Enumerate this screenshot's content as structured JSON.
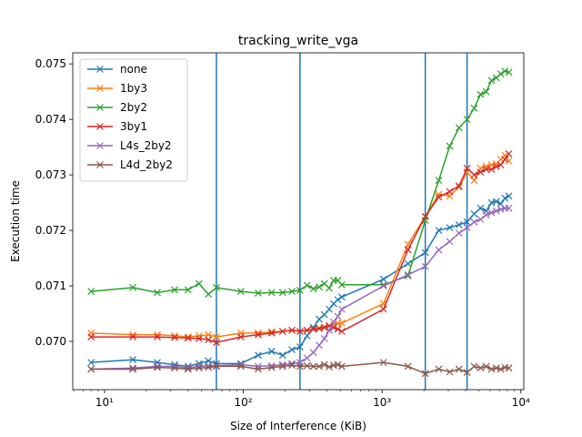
{
  "chart_data": {
    "type": "line",
    "title": "tracking_write_vga",
    "xlabel": "Size of Interference (KiB)",
    "ylabel": "Execution time",
    "xscale": "log",
    "xlim": [
      5.9,
      10500
    ],
    "ylim": [
      0.06913,
      0.0752
    ],
    "x_ticks": [
      10,
      100,
      1000,
      10000
    ],
    "x_tick_labels": [
      "10¹",
      "10²",
      "10³",
      "10⁴"
    ],
    "y_ticks": [
      0.07,
      0.071,
      0.072,
      0.073,
      0.074,
      0.075
    ],
    "y_tick_labels": [
      "0.070",
      "0.071",
      "0.072",
      "0.073",
      "0.074",
      "0.075"
    ],
    "vlines": [
      64,
      256,
      2048,
      4096
    ],
    "vline_color": "#1f77b4",
    "legend_position": "upper-left",
    "x": [
      8,
      16,
      24,
      32,
      40,
      48,
      56,
      64,
      96,
      128,
      160,
      192,
      224,
      256,
      288,
      320,
      352,
      384,
      416,
      448,
      480,
      512,
      1024,
      1536,
      2048,
      2560,
      3072,
      3584,
      4096,
      4608,
      5120,
      5632,
      6144,
      6656,
      7168,
      7680,
      8192
    ],
    "series": [
      {
        "name": "none",
        "color": "#1f77b4",
        "values": [
          0.06962,
          0.06967,
          0.06962,
          0.06958,
          0.06955,
          0.0696,
          0.06965,
          0.0696,
          0.0696,
          0.06975,
          0.06982,
          0.06975,
          0.06985,
          0.0699,
          0.0701,
          0.07025,
          0.0704,
          0.07048,
          0.07058,
          0.07068,
          0.07075,
          0.0708,
          0.07112,
          0.0714,
          0.0716,
          0.072,
          0.07205,
          0.0721,
          0.07215,
          0.0723,
          0.0724,
          0.07235,
          0.0725,
          0.07252,
          0.07248,
          0.07258,
          0.07262
        ]
      },
      {
        "name": "1by3",
        "color": "#ff7f0e",
        "values": [
          0.07015,
          0.07012,
          0.07012,
          0.0701,
          0.07008,
          0.0701,
          0.07012,
          0.07008,
          0.07015,
          0.07015,
          0.07017,
          0.07018,
          0.0702,
          0.07018,
          0.0702,
          0.07022,
          0.07024,
          0.07026,
          0.07028,
          0.0703,
          0.07032,
          0.07033,
          0.07068,
          0.07175,
          0.07225,
          0.07265,
          0.07262,
          0.07278,
          0.07305,
          0.0729,
          0.07312,
          0.07315,
          0.07318,
          0.0732,
          0.07328,
          0.07335,
          0.07325
        ]
      },
      {
        "name": "2by2",
        "color": "#2ca02c",
        "values": [
          0.0709,
          0.07097,
          0.07088,
          0.07093,
          0.07093,
          0.07104,
          0.07085,
          0.07097,
          0.0709,
          0.07087,
          0.07088,
          0.07088,
          0.0709,
          0.07092,
          0.07101,
          0.07095,
          0.07098,
          0.07104,
          0.07096,
          0.0711,
          0.0711,
          0.07102,
          0.07102,
          0.07118,
          0.07218,
          0.0729,
          0.07352,
          0.07385,
          0.074,
          0.0742,
          0.07445,
          0.0745,
          0.0747,
          0.07475,
          0.07482,
          0.07487,
          0.07485
        ]
      },
      {
        "name": "3by1",
        "color": "#d62728",
        "values": [
          0.07008,
          0.07008,
          0.07008,
          0.07007,
          0.07006,
          0.07005,
          0.07003,
          0.06998,
          0.07008,
          0.07012,
          0.07015,
          0.07018,
          0.0702,
          0.07018,
          0.0702,
          0.07022,
          0.07023,
          0.07025,
          0.07028,
          0.07025,
          0.07022,
          0.07018,
          0.07058,
          0.07165,
          0.07225,
          0.0726,
          0.0727,
          0.0728,
          0.07312,
          0.073,
          0.07305,
          0.0731,
          0.0731,
          0.07315,
          0.07318,
          0.07328,
          0.07338
        ]
      },
      {
        "name": "L4s_2by2",
        "color": "#9467bd",
        "values": [
          0.0695,
          0.06952,
          0.06955,
          0.06955,
          0.06952,
          0.06955,
          0.06956,
          0.06956,
          0.06958,
          0.06955,
          0.06956,
          0.06958,
          0.0696,
          0.06962,
          0.0697,
          0.0698,
          0.06993,
          0.07005,
          0.0702,
          0.07035,
          0.07045,
          0.07058,
          0.071,
          0.0712,
          0.07135,
          0.07165,
          0.0718,
          0.07195,
          0.07205,
          0.07215,
          0.0722,
          0.07228,
          0.07232,
          0.07235,
          0.07238,
          0.0724,
          0.0724
        ]
      },
      {
        "name": "L4d_2by2",
        "color": "#8c564b",
        "values": [
          0.0695,
          0.0695,
          0.06953,
          0.06952,
          0.0695,
          0.06952,
          0.06953,
          0.06955,
          0.06955,
          0.0695,
          0.06953,
          0.06955,
          0.06957,
          0.06955,
          0.06956,
          0.06955,
          0.06955,
          0.06958,
          0.06954,
          0.06957,
          0.06958,
          0.06955,
          0.06962,
          0.06955,
          0.06942,
          0.0695,
          0.06945,
          0.0695,
          0.06944,
          0.06955,
          0.06952,
          0.06955,
          0.0695,
          0.06952,
          0.0695,
          0.06953,
          0.06952
        ]
      }
    ]
  }
}
